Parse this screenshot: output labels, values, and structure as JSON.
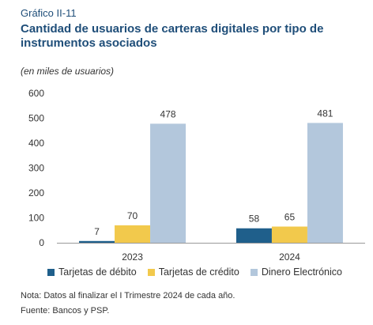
{
  "header": {
    "figure_label": "Gráfico II-11",
    "title": "Cantidad de usuarios de carteras digitales por tipo de instrumentos asociados",
    "subtitle": "(en miles de usuarios)"
  },
  "colors": {
    "debit": "#1f5f8b",
    "credit": "#f2c94c",
    "electronic": "#b3c7dc",
    "axis": "#999999",
    "title": "#1f4e79"
  },
  "chart_data": {
    "type": "bar",
    "categories": [
      "2023",
      "2024"
    ],
    "series": [
      {
        "name": "Tarjetas de débito",
        "values": [
          7,
          58
        ]
      },
      {
        "name": "Tarjetas de crédito",
        "values": [
          70,
          65
        ]
      },
      {
        "name": "Dinero Electrónico",
        "values": [
          478,
          481
        ]
      }
    ],
    "ylim": [
      0,
      600
    ],
    "yticks": [
      "0",
      "100",
      "200",
      "300",
      "400",
      "500",
      "600"
    ],
    "grid": false,
    "legend_position": "bottom"
  },
  "footer": {
    "note": "Nota: Datos al finalizar el I Trimestre 2024 de cada año.",
    "source": "Fuente: Bancos y PSP."
  }
}
